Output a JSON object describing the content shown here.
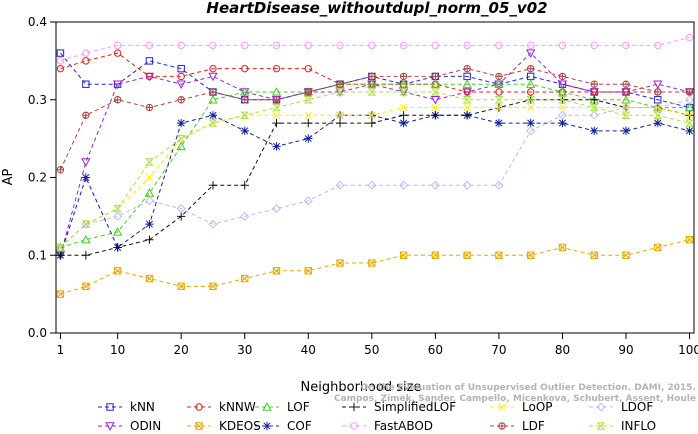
{
  "chart_data": {
    "type": "line",
    "title": "HeartDisease_withoutdupl_norm_05_v02",
    "xlabel": "Neighborhood size",
    "ylabel": "AP",
    "xlim": [
      1,
      100
    ],
    "ylim": [
      0,
      0.4
    ],
    "xticks": [
      1,
      10,
      20,
      30,
      40,
      50,
      60,
      70,
      80,
      90,
      100
    ],
    "yticks": [
      0.0,
      0.1,
      0.2,
      0.3,
      0.4
    ],
    "grid": false,
    "legend_position": "bottom",
    "x": [
      1,
      5,
      10,
      15,
      20,
      25,
      30,
      35,
      40,
      45,
      50,
      55,
      60,
      65,
      70,
      75,
      80,
      85,
      90,
      95,
      100
    ],
    "series": [
      {
        "name": "kNN",
        "color": "#2222dd",
        "marker": "square",
        "values": [
          0.36,
          0.32,
          0.32,
          0.35,
          0.34,
          0.31,
          0.3,
          0.3,
          0.31,
          0.32,
          0.33,
          0.32,
          0.33,
          0.33,
          0.32,
          0.33,
          0.32,
          0.31,
          0.31,
          0.3,
          0.29
        ]
      },
      {
        "name": "ODIN",
        "color": "#9922cc",
        "marker": "triangle-down",
        "values": [
          0.1,
          0.22,
          0.32,
          0.33,
          0.32,
          0.33,
          0.31,
          0.3,
          0.31,
          0.31,
          0.32,
          0.31,
          0.3,
          0.31,
          0.32,
          0.36,
          0.32,
          0.31,
          0.31,
          0.32,
          0.31
        ]
      },
      {
        "name": "kNNW",
        "color": "#dd2222",
        "marker": "circle",
        "values": [
          0.34,
          0.35,
          0.36,
          0.33,
          0.33,
          0.34,
          0.34,
          0.34,
          0.34,
          0.32,
          0.32,
          0.32,
          0.32,
          0.31,
          0.31,
          0.31,
          0.31,
          0.31,
          0.31,
          0.31,
          0.31
        ]
      },
      {
        "name": "KDEOS",
        "color": "#e8a800",
        "marker": "square-x",
        "values": [
          0.05,
          0.06,
          0.08,
          0.07,
          0.06,
          0.06,
          0.07,
          0.08,
          0.08,
          0.09,
          0.09,
          0.1,
          0.1,
          0.1,
          0.1,
          0.1,
          0.11,
          0.1,
          0.1,
          0.11,
          0.12
        ]
      },
      {
        "name": "LOF",
        "color": "#44cc22",
        "marker": "triangle",
        "values": [
          0.11,
          0.12,
          0.13,
          0.18,
          0.24,
          0.3,
          0.31,
          0.31,
          0.31,
          0.32,
          0.32,
          0.32,
          0.32,
          0.32,
          0.32,
          0.32,
          0.31,
          0.3,
          0.3,
          0.29,
          0.29
        ]
      },
      {
        "name": "COF",
        "color": "#112299",
        "marker": "asterisk",
        "values": [
          0.1,
          0.2,
          0.11,
          0.14,
          0.27,
          0.28,
          0.26,
          0.24,
          0.25,
          0.28,
          0.28,
          0.27,
          0.28,
          0.28,
          0.27,
          0.27,
          0.27,
          0.26,
          0.26,
          0.27,
          0.26
        ]
      },
      {
        "name": "SimplifiedLOF",
        "color": "#111111",
        "marker": "plus",
        "values": [
          0.1,
          0.1,
          0.11,
          0.12,
          0.15,
          0.19,
          0.19,
          0.27,
          0.27,
          0.27,
          0.27,
          0.28,
          0.28,
          0.28,
          0.29,
          0.3,
          0.3,
          0.3,
          0.29,
          0.29,
          0.28
        ]
      },
      {
        "name": "FastABOD",
        "color": "#ff99ff",
        "marker": "circle",
        "values": [
          0.35,
          0.36,
          0.37,
          0.37,
          0.37,
          0.37,
          0.37,
          0.37,
          0.37,
          0.37,
          0.37,
          0.37,
          0.37,
          0.37,
          0.37,
          0.37,
          0.37,
          0.37,
          0.37,
          0.37,
          0.38
        ]
      },
      {
        "name": "LoOP",
        "color": "#ffee00",
        "marker": "x",
        "values": [
          0.11,
          0.14,
          0.16,
          0.2,
          0.25,
          0.27,
          0.28,
          0.28,
          0.28,
          0.28,
          0.28,
          0.29,
          0.29,
          0.29,
          0.29,
          0.29,
          0.29,
          0.29,
          0.29,
          0.29,
          0.28
        ]
      },
      {
        "name": "LDF",
        "color": "#aa4444",
        "marker": "circle-plus",
        "values": [
          0.21,
          0.28,
          0.3,
          0.29,
          0.3,
          0.31,
          0.3,
          0.3,
          0.31,
          0.32,
          0.33,
          0.33,
          0.33,
          0.34,
          0.33,
          0.34,
          0.33,
          0.32,
          0.32,
          0.31,
          0.31
        ]
      },
      {
        "name": "LDOF",
        "color": "#bbbbee",
        "marker": "diamond",
        "values": [
          0.11,
          0.14,
          0.15,
          0.17,
          0.16,
          0.14,
          0.15,
          0.16,
          0.17,
          0.19,
          0.19,
          0.19,
          0.19,
          0.19,
          0.19,
          0.26,
          0.28,
          0.28,
          0.29,
          0.29,
          0.3
        ]
      },
      {
        "name": "INFLO",
        "color": "#aadd44",
        "marker": "hourglass",
        "values": [
          0.11,
          0.14,
          0.16,
          0.22,
          0.25,
          0.27,
          0.28,
          0.29,
          0.3,
          0.31,
          0.31,
          0.31,
          0.31,
          0.3,
          0.3,
          0.3,
          0.3,
          0.29,
          0.28,
          0.28,
          0.27
        ]
      }
    ],
    "annotation": "Campos, Zimek, Sander, Campello, Micenkova, Schubert, Assent, Houle: On the Evaluation of Unsupervised Outlier Detection. DAMI, 2015."
  }
}
